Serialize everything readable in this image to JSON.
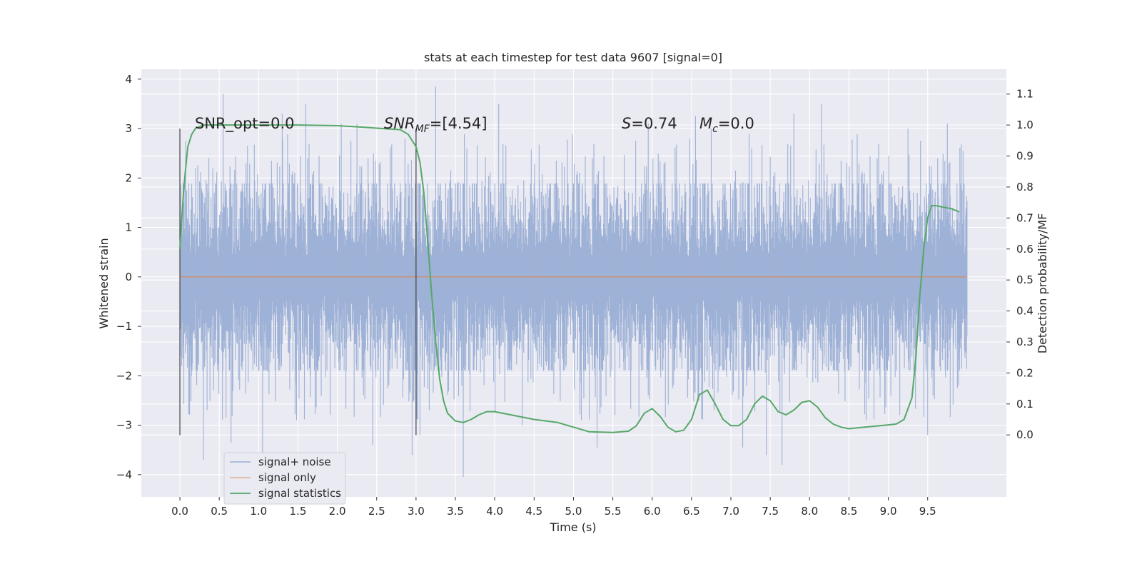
{
  "chart_data": {
    "type": "line",
    "title": "stats at each timestep for test data 9607 [signal=0]",
    "xlabel": "Time (s)",
    "ylabel": "Whitened strain",
    "ylabel_right": "Detection probability/MF",
    "xlim": [
      -0.49,
      10.5
    ],
    "ylim": [
      -4.45,
      4.2
    ],
    "ylim_right": [
      -0.2,
      1.18
    ],
    "x_ticks": [
      "0.0",
      "0.5",
      "1.0",
      "1.5",
      "2.0",
      "2.5",
      "3.0",
      "3.5",
      "4.0",
      "4.5",
      "5.0",
      "5.5",
      "6.0",
      "6.5",
      "7.0",
      "7.5",
      "8.0",
      "8.5",
      "9.0",
      "9.5"
    ],
    "y_ticks": [
      "−4",
      "−3",
      "−2",
      "−1",
      "0",
      "1",
      "2",
      "3",
      "4"
    ],
    "y_ticks_right": [
      "0.0",
      "0.1",
      "0.2",
      "0.3",
      "0.4",
      "0.5",
      "0.6",
      "0.7",
      "0.8",
      "0.9",
      "1.0",
      "1.1"
    ],
    "grid": true,
    "legend_position": "lower-left",
    "annotations": {
      "snr_opt": "SNR_opt=0.0",
      "snr_mf_italic": "SNR",
      "snr_mf_sub": "MF",
      "snr_mf_value": "=[4.54]",
      "s_italic": "S",
      "s_value": "=0.74",
      "mc_italic": "M",
      "mc_sub": "c",
      "mc_value": "=0.0"
    },
    "vlines": [
      {
        "x": 0.0,
        "ymin": -3.2,
        "ymax": 3.0
      },
      {
        "x": 3.0,
        "ymin": -3.2,
        "ymax": 3.0
      }
    ],
    "series": [
      {
        "name": "signal+ noise",
        "color": "#9aaed4",
        "x_range": [
          0.0,
          10.0
        ],
        "typical_envelope": [
          -1.8,
          1.8
        ],
        "extreme_values": [
          {
            "x": 0.0,
            "y": 2.6
          },
          {
            "x": 0.05,
            "y": -2.5
          },
          {
            "x": 0.3,
            "y": -3.7
          },
          {
            "x": 0.55,
            "y": 3.7
          },
          {
            "x": 0.65,
            "y": -3.35
          },
          {
            "x": 1.05,
            "y": -3.6
          },
          {
            "x": 1.3,
            "y": 3.3
          },
          {
            "x": 1.6,
            "y": 3.5
          },
          {
            "x": 2.05,
            "y": 3.1
          },
          {
            "x": 2.25,
            "y": 3.1
          },
          {
            "x": 2.45,
            "y": -3.4
          },
          {
            "x": 2.95,
            "y": -3.6
          },
          {
            "x": 3.05,
            "y": -3.2
          },
          {
            "x": 3.25,
            "y": 3.85
          },
          {
            "x": 3.6,
            "y": -4.05
          },
          {
            "x": 4.05,
            "y": 3.5
          },
          {
            "x": 4.35,
            "y": -3.0
          },
          {
            "x": 5.3,
            "y": -3.45
          },
          {
            "x": 5.95,
            "y": 3.1
          },
          {
            "x": 6.55,
            "y": 3.25
          },
          {
            "x": 6.75,
            "y": 3.0
          },
          {
            "x": 7.15,
            "y": -3.45
          },
          {
            "x": 7.45,
            "y": -3.6
          },
          {
            "x": 7.65,
            "y": -3.8
          },
          {
            "x": 7.8,
            "y": 3.3
          },
          {
            "x": 8.15,
            "y": 3.5
          },
          {
            "x": 9.25,
            "y": 3.0
          },
          {
            "x": 9.5,
            "y": -3.2
          },
          {
            "x": 9.75,
            "y": 3.1
          },
          {
            "x": 9.95,
            "y": 2.55
          }
        ]
      },
      {
        "name": "signal only",
        "color": "#dd8452",
        "x": [
          0.0,
          10.0
        ],
        "values": [
          0.0,
          0.0
        ]
      },
      {
        "name": "signal statistics",
        "color": "#55a868",
        "axis": "right",
        "x": [
          0.0,
          0.05,
          0.1,
          0.15,
          0.2,
          0.3,
          0.5,
          1.0,
          1.5,
          2.0,
          2.2,
          2.5,
          2.8,
          2.9,
          3.0,
          3.05,
          3.1,
          3.15,
          3.2,
          3.25,
          3.3,
          3.35,
          3.4,
          3.5,
          3.6,
          3.7,
          3.8,
          3.9,
          4.0,
          4.2,
          4.5,
          4.8,
          5.0,
          5.2,
          5.5,
          5.7,
          5.8,
          5.9,
          6.0,
          6.1,
          6.2,
          6.3,
          6.4,
          6.5,
          6.6,
          6.7,
          6.8,
          6.9,
          7.0,
          7.1,
          7.2,
          7.3,
          7.4,
          7.5,
          7.6,
          7.7,
          7.8,
          7.9,
          8.0,
          8.1,
          8.2,
          8.3,
          8.4,
          8.5,
          8.7,
          8.9,
          9.1,
          9.2,
          9.3,
          9.35,
          9.4,
          9.45,
          9.5,
          9.55,
          9.6,
          9.7,
          9.8,
          9.9
        ],
        "values": [
          0.6,
          0.8,
          0.93,
          0.97,
          0.99,
          1.0,
          1.0,
          1.0,
          1.0,
          0.998,
          0.995,
          0.99,
          0.985,
          0.97,
          0.93,
          0.88,
          0.78,
          0.62,
          0.45,
          0.3,
          0.18,
          0.11,
          0.07,
          0.045,
          0.04,
          0.05,
          0.065,
          0.075,
          0.075,
          0.065,
          0.05,
          0.04,
          0.025,
          0.01,
          0.008,
          0.012,
          0.03,
          0.07,
          0.085,
          0.06,
          0.025,
          0.01,
          0.015,
          0.05,
          0.13,
          0.145,
          0.1,
          0.05,
          0.03,
          0.03,
          0.05,
          0.1,
          0.125,
          0.11,
          0.075,
          0.065,
          0.08,
          0.105,
          0.11,
          0.09,
          0.055,
          0.035,
          0.025,
          0.02,
          0.025,
          0.03,
          0.035,
          0.05,
          0.12,
          0.25,
          0.45,
          0.6,
          0.7,
          0.74,
          0.74,
          0.735,
          0.73,
          0.72
        ]
      }
    ]
  }
}
